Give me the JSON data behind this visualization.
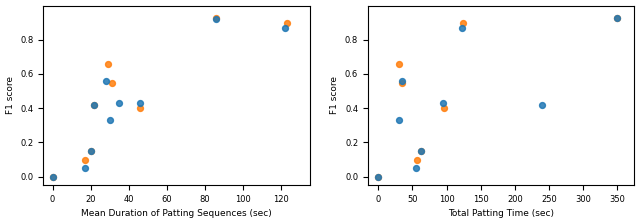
{
  "plot1": {
    "xlabel": "Mean Duration of Patting Sequences (sec)",
    "ylabel": "F1 score",
    "blue_x": [
      0,
      17,
      20,
      22,
      28,
      30,
      35,
      46,
      86,
      122
    ],
    "blue_y": [
      0.0,
      0.05,
      0.15,
      0.42,
      0.56,
      0.33,
      0.43,
      0.43,
      0.92,
      0.87
    ],
    "orange_x": [
      0,
      17,
      20,
      22,
      29,
      31,
      46,
      86,
      123
    ],
    "orange_y": [
      0.0,
      0.1,
      0.15,
      0.42,
      0.66,
      0.55,
      0.4,
      0.93,
      0.9
    ],
    "xlim": [
      -5,
      135
    ],
    "ylim": [
      -0.05,
      1.0
    ],
    "xticks": [
      0,
      20,
      40,
      60,
      80,
      100,
      120
    ],
    "yticks": [
      0.0,
      0.2,
      0.4,
      0.6,
      0.8
    ]
  },
  "plot2": {
    "xlabel": "Total Patting Time (sec)",
    "ylabel": "F1 score",
    "blue_x": [
      0,
      30,
      35,
      55,
      62,
      95,
      122,
      240,
      350
    ],
    "blue_y": [
      0.0,
      0.33,
      0.56,
      0.05,
      0.15,
      0.43,
      0.87,
      0.42,
      0.93
    ],
    "orange_x": [
      0,
      30,
      35,
      57,
      62,
      97,
      124,
      350
    ],
    "orange_y": [
      0.0,
      0.66,
      0.55,
      0.1,
      0.15,
      0.4,
      0.9,
      0.93
    ],
    "xlim": [
      -15,
      375
    ],
    "ylim": [
      -0.05,
      1.0
    ],
    "xticks": [
      0,
      50,
      100,
      150,
      200,
      250,
      300,
      350
    ],
    "yticks": [
      0.0,
      0.2,
      0.4,
      0.6,
      0.8
    ]
  },
  "blue_color": "#1f77b4",
  "orange_color": "#ff7f0e",
  "marker_size": 18,
  "alpha": 0.85,
  "figsize": [
    6.4,
    2.24
  ],
  "dpi": 100,
  "label_fontsize": 6.5,
  "tick_fontsize": 6
}
